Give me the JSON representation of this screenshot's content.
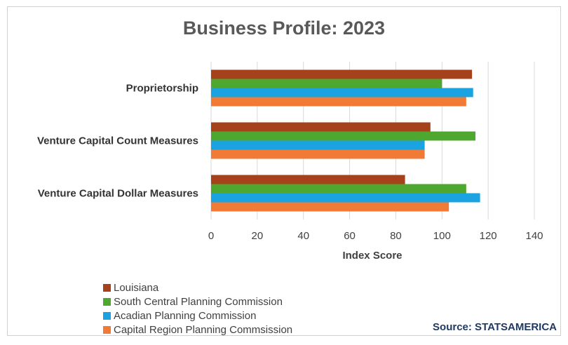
{
  "chart_data": {
    "type": "bar",
    "orientation": "horizontal",
    "title": "Business Profile: 2023",
    "xlabel": "Index Score",
    "ylabel": "",
    "xlim": [
      0,
      140
    ],
    "ticks": [
      "0",
      "20",
      "40",
      "60",
      "80",
      "100",
      "120",
      "140"
    ],
    "grid": true,
    "legend_position": "bottom-left",
    "categories": [
      "Proprietorship",
      "Venture Capital Count Measures",
      "Venture Capital Dollar Measures"
    ],
    "series": [
      {
        "name": "Louisiana",
        "color": "#A5421B",
        "values": [
          113,
          95,
          84
        ]
      },
      {
        "name": "South Central Planning Commission",
        "color": "#4EA72E",
        "values": [
          100,
          114.5,
          110.5
        ]
      },
      {
        "name": "Acadian Planning Commission",
        "color": "#1AA3E0",
        "values": [
          113.5,
          92.5,
          116.5
        ]
      },
      {
        "name": "Capital Region Planning Commsission",
        "color": "#F07A36",
        "values": [
          110.5,
          92.5,
          103
        ]
      }
    ],
    "source": "Source: STATSAMERICA"
  }
}
